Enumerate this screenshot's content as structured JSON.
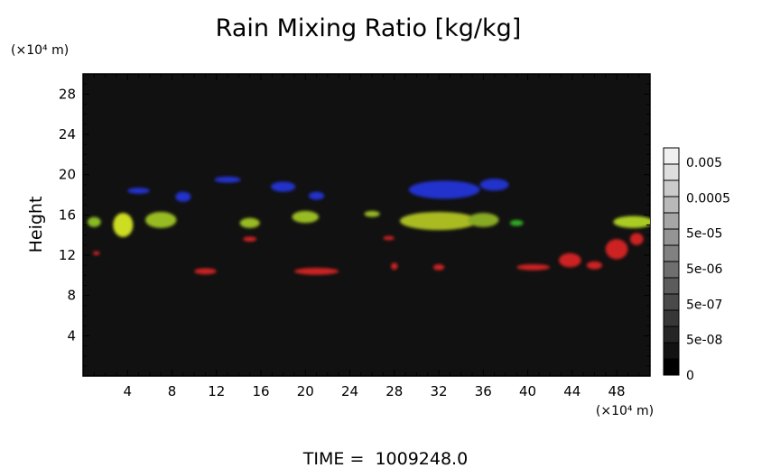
{
  "chart_data": {
    "type": "heatmap",
    "title": "Rain Mixing Ratio [kg/kg]",
    "ylabel": "Height",
    "x_unit": "(×10⁴ m)",
    "y_unit": "(×10⁴ m)",
    "footer": "TIME =  1009248.0",
    "xlim": [
      0,
      51
    ],
    "ylim": [
      0,
      30
    ],
    "xticks": [
      4,
      8,
      12,
      16,
      20,
      24,
      28,
      32,
      36,
      40,
      44,
      48
    ],
    "yticks": [
      4,
      8,
      12,
      16,
      20,
      24,
      28
    ],
    "background_color": "#111111",
    "colorbar": {
      "labels": [
        "0.005",
        "0.0005",
        "5e-05",
        "5e-06",
        "5e-07",
        "5e-08",
        "0"
      ],
      "levels": 14,
      "top_color": "#f0f0f0",
      "bottom_color": "#000000"
    },
    "regions": [
      {
        "color": "#2233cc",
        "x": 5.0,
        "y": 18.4,
        "rx": 1.0,
        "ry": 0.3
      },
      {
        "color": "#2233cc",
        "x": 9.0,
        "y": 17.8,
        "rx": 0.7,
        "ry": 0.5
      },
      {
        "color": "#2233cc",
        "x": 13.0,
        "y": 19.5,
        "rx": 1.2,
        "ry": 0.3
      },
      {
        "color": "#2233cc",
        "x": 18.0,
        "y": 18.8,
        "rx": 1.1,
        "ry": 0.5
      },
      {
        "color": "#2233cc",
        "x": 21.0,
        "y": 17.9,
        "rx": 0.7,
        "ry": 0.4
      },
      {
        "color": "#2233cc",
        "x": 32.5,
        "y": 18.5,
        "rx": 3.2,
        "ry": 0.9
      },
      {
        "color": "#2233cc",
        "x": 37.0,
        "y": 19.0,
        "rx": 1.3,
        "ry": 0.6
      },
      {
        "color": "#88bb22",
        "x": 1.0,
        "y": 15.3,
        "rx": 0.6,
        "ry": 0.5
      },
      {
        "color": "#ccdd22",
        "x": 3.6,
        "y": 15.0,
        "rx": 0.9,
        "ry": 1.2
      },
      {
        "color": "#99bb22",
        "x": 7.0,
        "y": 15.5,
        "rx": 1.4,
        "ry": 0.8
      },
      {
        "color": "#99bb22",
        "x": 15.0,
        "y": 15.2,
        "rx": 0.9,
        "ry": 0.5
      },
      {
        "color": "#99bb22",
        "x": 20.0,
        "y": 15.8,
        "rx": 1.2,
        "ry": 0.6
      },
      {
        "color": "#99bb22",
        "x": 26.0,
        "y": 16.1,
        "rx": 0.7,
        "ry": 0.3
      },
      {
        "color": "#aabb22",
        "x": 32.0,
        "y": 15.4,
        "rx": 3.5,
        "ry": 0.9
      },
      {
        "color": "#88aa22",
        "x": 36.0,
        "y": 15.5,
        "rx": 1.4,
        "ry": 0.7
      },
      {
        "color": "#33aa22",
        "x": 39.0,
        "y": 15.2,
        "rx": 0.6,
        "ry": 0.3
      },
      {
        "color": "#aacc22",
        "x": 49.5,
        "y": 15.3,
        "rx": 1.8,
        "ry": 0.6
      },
      {
        "color": "#cc2222",
        "x": 1.2,
        "y": 12.2,
        "rx": 0.3,
        "ry": 0.2
      },
      {
        "color": "#cc2222",
        "x": 15.0,
        "y": 13.6,
        "rx": 0.6,
        "ry": 0.25
      },
      {
        "color": "#cc2222",
        "x": 11.0,
        "y": 10.4,
        "rx": 1.0,
        "ry": 0.3
      },
      {
        "color": "#cc2222",
        "x": 21.0,
        "y": 10.4,
        "rx": 2.0,
        "ry": 0.35
      },
      {
        "color": "#cc2222",
        "x": 27.5,
        "y": 13.7,
        "rx": 0.5,
        "ry": 0.2
      },
      {
        "color": "#cc2222",
        "x": 28.0,
        "y": 10.9,
        "rx": 0.3,
        "ry": 0.35
      },
      {
        "color": "#cc2222",
        "x": 32.0,
        "y": 10.8,
        "rx": 0.5,
        "ry": 0.3
      },
      {
        "color": "#cc2222",
        "x": 40.5,
        "y": 10.8,
        "rx": 1.5,
        "ry": 0.3
      },
      {
        "color": "#cc2222",
        "x": 43.8,
        "y": 11.5,
        "rx": 1.0,
        "ry": 0.7
      },
      {
        "color": "#cc2222",
        "x": 46.0,
        "y": 11.0,
        "rx": 0.7,
        "ry": 0.4
      },
      {
        "color": "#cc2222",
        "x": 48.0,
        "y": 12.6,
        "rx": 1.0,
        "ry": 1.0
      },
      {
        "color": "#cc2222",
        "x": 49.8,
        "y": 13.6,
        "rx": 0.6,
        "ry": 0.6
      }
    ]
  }
}
